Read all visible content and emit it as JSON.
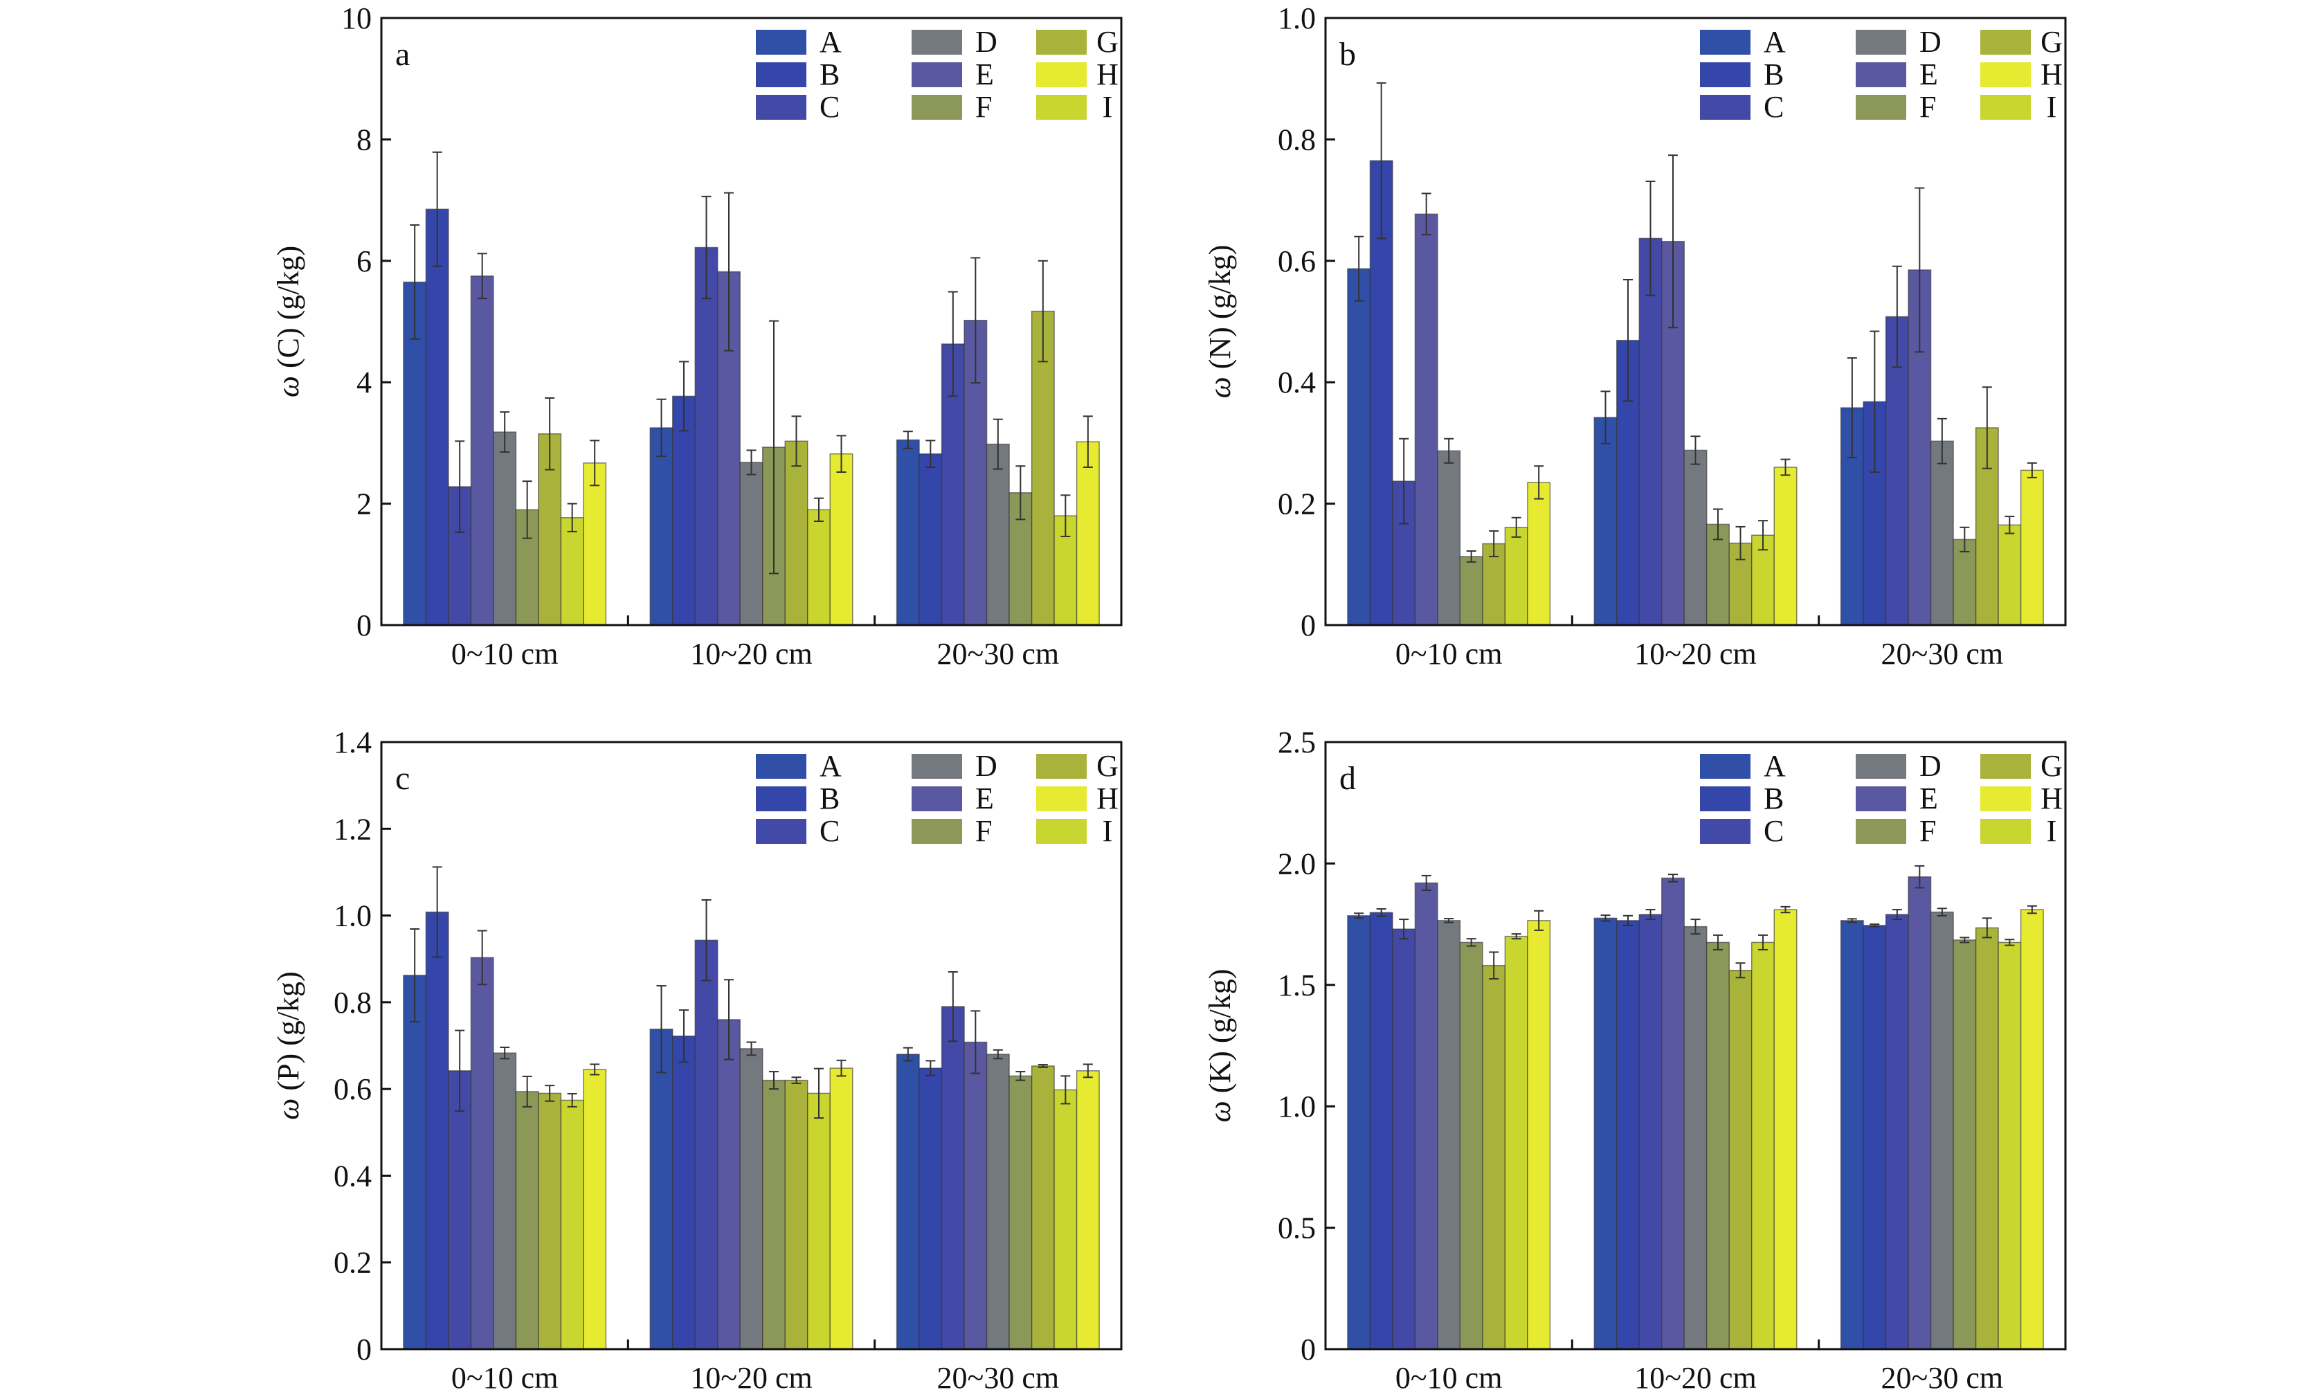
{
  "chart_data": [
    {
      "type": "bar",
      "panel_label": "a",
      "ylabel": "ω (C) (g/kg)",
      "xlabel": "",
      "ylim": [
        0,
        10
      ],
      "yticks": [
        "0",
        "2",
        "4",
        "6",
        "8",
        "10"
      ],
      "ytick_values": [
        0,
        2,
        4,
        6,
        8,
        10
      ],
      "categories": [
        "0~10 cm",
        "10~20 cm",
        "20~30 cm"
      ],
      "legend_position": "top-right",
      "series": [
        {
          "name": "A",
          "color": "#3050a8",
          "values": [
            5.65,
            3.25,
            3.05
          ],
          "errors": [
            0.94,
            0.47,
            0.14
          ]
        },
        {
          "name": "B",
          "color": "#3446aa",
          "values": [
            6.85,
            3.77,
            2.82
          ],
          "errors": [
            0.94,
            0.57,
            0.22
          ]
        },
        {
          "name": "C",
          "color": "#4249a6",
          "values": [
            2.28,
            6.22,
            4.63
          ],
          "errors": [
            0.75,
            0.84,
            0.86
          ]
        },
        {
          "name": "E",
          "color": "#5a58a0",
          "values": [
            5.75,
            5.82,
            5.02
          ],
          "errors": [
            0.37,
            1.3,
            1.03
          ]
        },
        {
          "name": "D",
          "color": "#74787f",
          "values": [
            3.18,
            2.68,
            2.98
          ],
          "errors": [
            0.33,
            0.2,
            0.41
          ]
        },
        {
          "name": "F",
          "color": "#8c9858",
          "values": [
            1.9,
            2.93,
            2.18
          ],
          "errors": [
            0.47,
            2.08,
            0.44
          ]
        },
        {
          "name": "G",
          "color": "#a9b23a",
          "values": [
            3.15,
            3.03,
            5.17
          ],
          "errors": [
            0.59,
            0.41,
            0.83
          ]
        },
        {
          "name": "I",
          "color": "#cad630",
          "values": [
            1.77,
            1.9,
            1.8
          ],
          "errors": [
            0.23,
            0.19,
            0.34
          ]
        },
        {
          "name": "H",
          "color": "#e6ea30",
          "values": [
            2.67,
            2.82,
            3.02
          ],
          "errors": [
            0.37,
            0.3,
            0.42
          ]
        }
      ]
    },
    {
      "type": "bar",
      "panel_label": "b",
      "ylabel": "ω (N) (g/kg)",
      "xlabel": "",
      "ylim": [
        0,
        1.0
      ],
      "yticks": [
        "0",
        "0.2",
        "0.4",
        "0.6",
        "0.8",
        "1.0"
      ],
      "ytick_values": [
        0,
        0.2,
        0.4,
        0.6,
        0.8,
        1.0
      ],
      "categories": [
        "0~10 cm",
        "10~20 cm",
        "20~30 cm"
      ],
      "legend_position": "top-right",
      "series": [
        {
          "name": "A",
          "color": "#3050a8",
          "values": [
            0.587,
            0.342,
            0.358
          ],
          "errors": [
            0.053,
            0.043,
            0.082
          ]
        },
        {
          "name": "B",
          "color": "#3446aa",
          "values": [
            0.765,
            0.469,
            0.368
          ],
          "errors": [
            0.128,
            0.1,
            0.116
          ]
        },
        {
          "name": "C",
          "color": "#4249a6",
          "values": [
            0.237,
            0.637,
            0.508
          ],
          "errors": [
            0.07,
            0.094,
            0.083
          ]
        },
        {
          "name": "E",
          "color": "#5a58a0",
          "values": [
            0.677,
            0.632,
            0.585
          ],
          "errors": [
            0.034,
            0.142,
            0.135
          ]
        },
        {
          "name": "D",
          "color": "#74787f",
          "values": [
            0.287,
            0.288,
            0.303
          ],
          "errors": [
            0.02,
            0.023,
            0.037
          ]
        },
        {
          "name": "F",
          "color": "#8c9858",
          "values": [
            0.113,
            0.166,
            0.141
          ],
          "errors": [
            0.009,
            0.025,
            0.02
          ]
        },
        {
          "name": "G",
          "color": "#a9b23a",
          "values": [
            0.134,
            0.135,
            0.325
          ],
          "errors": [
            0.021,
            0.027,
            0.067
          ]
        },
        {
          "name": "I",
          "color": "#cad630",
          "values": [
            0.161,
            0.148,
            0.165
          ],
          "errors": [
            0.016,
            0.024,
            0.014
          ]
        },
        {
          "name": "H",
          "color": "#e6ea30",
          "values": [
            0.235,
            0.26,
            0.255
          ],
          "errors": [
            0.027,
            0.013,
            0.012
          ]
        }
      ]
    },
    {
      "type": "bar",
      "panel_label": "c",
      "ylabel": "ω (P) (g/kg)",
      "xlabel": "",
      "ylim": [
        0,
        1.4
      ],
      "yticks": [
        "0",
        "0.2",
        "0.4",
        "0.6",
        "0.8",
        "1.0",
        "1.2",
        "1.4"
      ],
      "ytick_values": [
        0,
        0.2,
        0.4,
        0.6,
        0.8,
        1.0,
        1.2,
        1.4
      ],
      "categories": [
        "0~10 cm",
        "10~20 cm",
        "20~30 cm"
      ],
      "legend_position": "top-right",
      "series": [
        {
          "name": "A",
          "color": "#3050a8",
          "values": [
            0.862,
            0.738,
            0.68
          ],
          "errors": [
            0.107,
            0.1,
            0.015
          ]
        },
        {
          "name": "B",
          "color": "#3446aa",
          "values": [
            1.008,
            0.722,
            0.648
          ],
          "errors": [
            0.104,
            0.06,
            0.017
          ]
        },
        {
          "name": "C",
          "color": "#4249a6",
          "values": [
            0.642,
            0.943,
            0.79
          ],
          "errors": [
            0.093,
            0.093,
            0.08
          ]
        },
        {
          "name": "E",
          "color": "#5a58a0",
          "values": [
            0.903,
            0.76,
            0.708
          ],
          "errors": [
            0.062,
            0.092,
            0.072
          ]
        },
        {
          "name": "D",
          "color": "#74787f",
          "values": [
            0.683,
            0.693,
            0.68
          ],
          "errors": [
            0.013,
            0.015,
            0.01
          ]
        },
        {
          "name": "F",
          "color": "#8c9858",
          "values": [
            0.594,
            0.62,
            0.63
          ],
          "errors": [
            0.035,
            0.02,
            0.01
          ]
        },
        {
          "name": "G",
          "color": "#a9b23a",
          "values": [
            0.59,
            0.62,
            0.653
          ],
          "errors": [
            0.018,
            0.007,
            0.003
          ]
        },
        {
          "name": "I",
          "color": "#cad630",
          "values": [
            0.574,
            0.59,
            0.598
          ],
          "errors": [
            0.015,
            0.057,
            0.032
          ]
        },
        {
          "name": "H",
          "color": "#e6ea30",
          "values": [
            0.645,
            0.648,
            0.642
          ],
          "errors": [
            0.012,
            0.018,
            0.015
          ]
        }
      ]
    },
    {
      "type": "bar",
      "panel_label": "d",
      "ylabel": "ω (K) (g/kg)",
      "xlabel": "",
      "ylim": [
        0,
        2.5
      ],
      "yticks": [
        "0",
        "0.5",
        "1.0",
        "1.5",
        "2.0",
        "2.5"
      ],
      "ytick_values": [
        0,
        0.5,
        1.0,
        1.5,
        2.0,
        2.5
      ],
      "categories": [
        "0~10 cm",
        "10~20 cm",
        "20~30 cm"
      ],
      "legend_position": "top-right",
      "series": [
        {
          "name": "A",
          "color": "#3050a8",
          "values": [
            1.785,
            1.775,
            1.765
          ],
          "errors": [
            0.01,
            0.012,
            0.007
          ]
        },
        {
          "name": "B",
          "color": "#3446aa",
          "values": [
            1.798,
            1.765,
            1.745
          ],
          "errors": [
            0.015,
            0.02,
            0.005
          ]
        },
        {
          "name": "C",
          "color": "#4249a6",
          "values": [
            1.73,
            1.79,
            1.79
          ],
          "errors": [
            0.04,
            0.02,
            0.02
          ]
        },
        {
          "name": "E",
          "color": "#5a58a0",
          "values": [
            1.92,
            1.94,
            1.945
          ],
          "errors": [
            0.03,
            0.015,
            0.045
          ]
        },
        {
          "name": "D",
          "color": "#74787f",
          "values": [
            1.765,
            1.74,
            1.8
          ],
          "errors": [
            0.008,
            0.03,
            0.015
          ]
        },
        {
          "name": "F",
          "color": "#8c9858",
          "values": [
            1.675,
            1.675,
            1.685
          ],
          "errors": [
            0.015,
            0.03,
            0.01
          ]
        },
        {
          "name": "G",
          "color": "#a9b23a",
          "values": [
            1.58,
            1.56,
            1.735
          ],
          "errors": [
            0.055,
            0.03,
            0.04
          ]
        },
        {
          "name": "I",
          "color": "#cad630",
          "values": [
            1.7,
            1.675,
            1.675
          ],
          "errors": [
            0.01,
            0.03,
            0.012
          ]
        },
        {
          "name": "H",
          "color": "#e6ea30",
          "values": [
            1.765,
            1.81,
            1.81
          ],
          "errors": [
            0.04,
            0.012,
            0.015
          ]
        }
      ]
    }
  ]
}
